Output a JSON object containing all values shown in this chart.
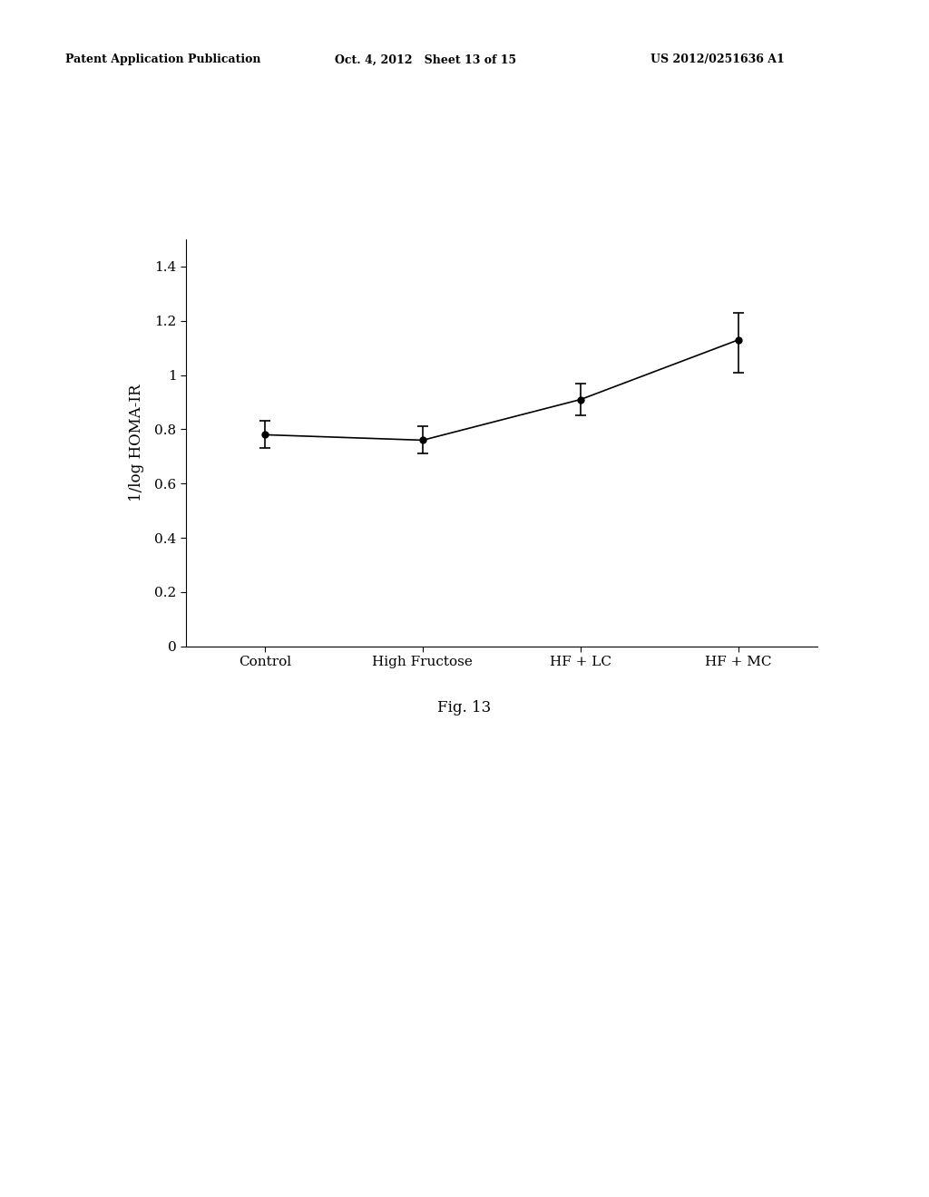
{
  "categories": [
    "Control",
    "High Fructose",
    "HF + LC",
    "HF + MC"
  ],
  "values": [
    0.78,
    0.76,
    0.91,
    1.13
  ],
  "yerr_upper": [
    0.05,
    0.05,
    0.06,
    0.1
  ],
  "yerr_lower": [
    0.05,
    0.05,
    0.06,
    0.12
  ],
  "ylabel": "1/log HOMA-IR",
  "ylim": [
    0,
    1.5
  ],
  "yticks": [
    0,
    0.2,
    0.4,
    0.6,
    0.8,
    1.0,
    1.2,
    1.4
  ],
  "ytick_labels": [
    "0",
    "0.2",
    "0.4",
    "0.6",
    "0.8",
    "1",
    "1.2",
    "1.4"
  ],
  "line_color": "#000000",
  "marker": "o",
  "marker_size": 5,
  "marker_facecolor": "#000000",
  "capsize": 4,
  "line_width": 1.2,
  "header_left": "Patent Application Publication",
  "header_mid": "Oct. 4, 2012   Sheet 13 of 15",
  "header_right": "US 2012/0251636 A1",
  "fig_caption": "Fig. 13",
  "background_color": "#ffffff",
  "text_color": "#000000",
  "font_size_axis": 12,
  "font_size_ticks": 11,
  "font_size_header": 9,
  "font_size_caption": 12
}
